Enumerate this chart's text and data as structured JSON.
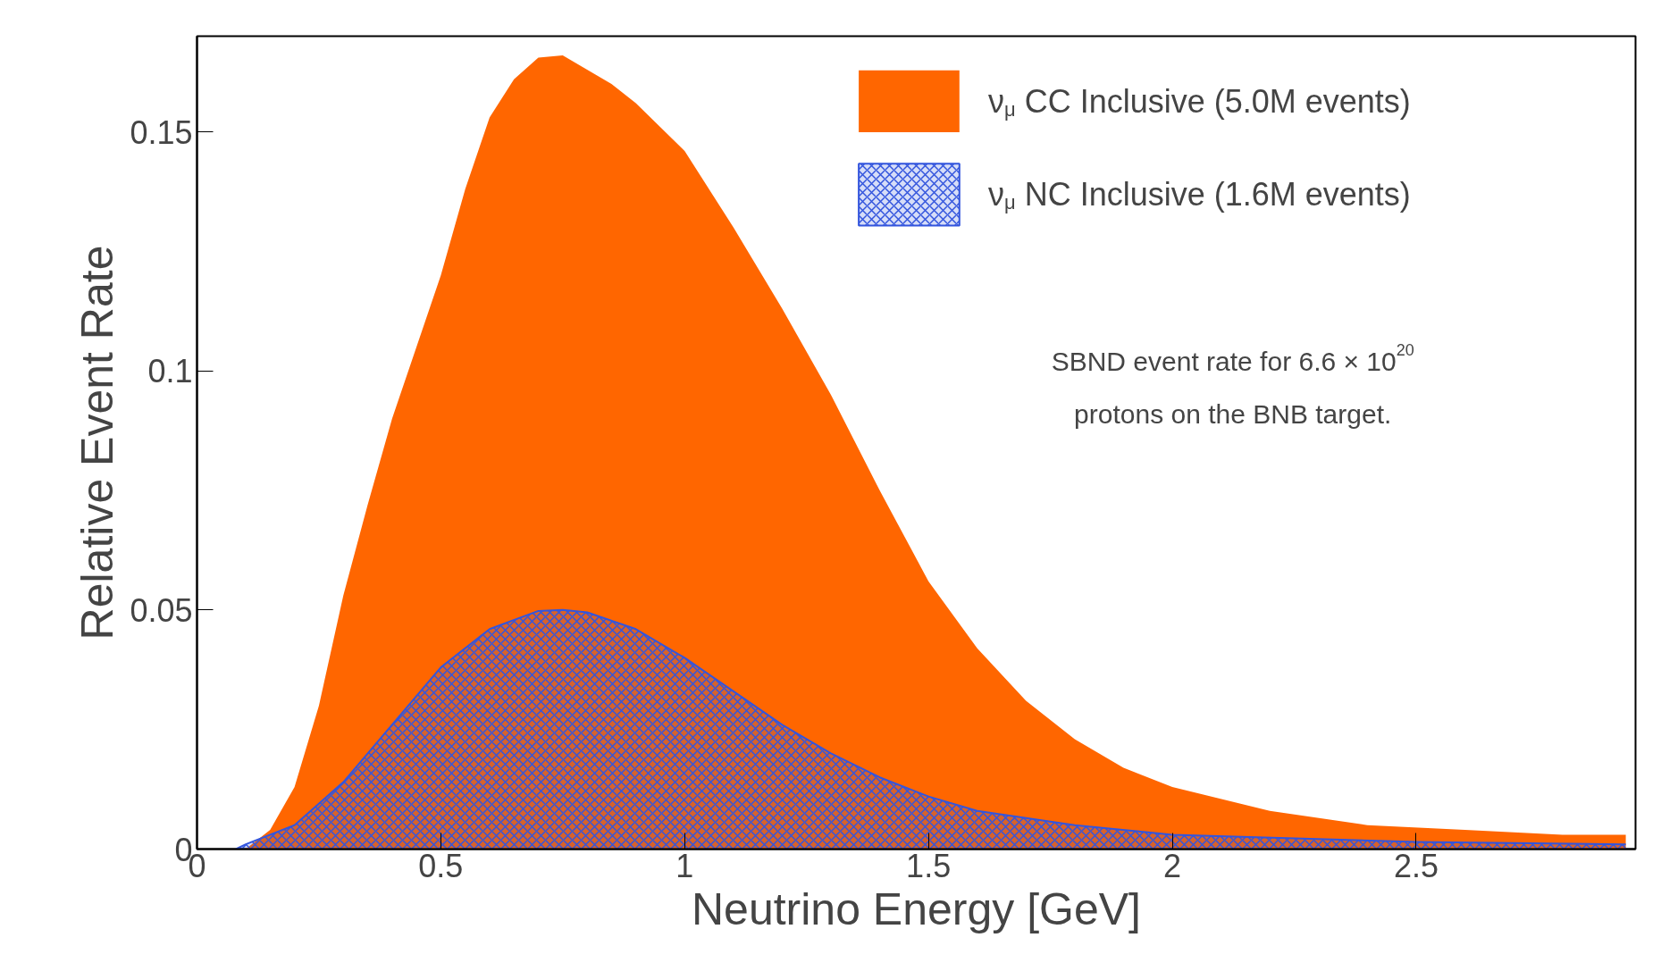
{
  "chart_data": {
    "type": "area",
    "xlabel": "Neutrino Energy [GeV]",
    "ylabel": "Relative Event Rate",
    "xlim": [
      0,
      2.95
    ],
    "ylim": [
      0,
      0.17
    ],
    "xticks": [
      0,
      0.5,
      1,
      1.5,
      2,
      2.5
    ],
    "yticks": [
      0,
      0.05,
      0.1,
      0.15
    ],
    "grid": false,
    "legend": "top right",
    "annotations": [
      "SBND event rate for 6.6 × 10$^{20}$",
      "protons on the BNB target."
    ],
    "series": [
      {
        "name": "ν$_{μ}$ CC Inclusive  (5.0M events)",
        "color": "#ff6600",
        "x": [
          0.1,
          0.15,
          0.2,
          0.25,
          0.3,
          0.35,
          0.4,
          0.45,
          0.5,
          0.55,
          0.6,
          0.65,
          0.7,
          0.75,
          0.8,
          0.85,
          0.9,
          0.95,
          1.0,
          1.1,
          1.2,
          1.3,
          1.4,
          1.5,
          1.6,
          1.7,
          1.8,
          1.9,
          2.0,
          2.2,
          2.4,
          2.6,
          2.8,
          2.93
        ],
        "values": [
          0,
          0.004,
          0.013,
          0.03,
          0.053,
          0.072,
          0.09,
          0.105,
          0.12,
          0.138,
          0.153,
          0.161,
          0.1655,
          0.166,
          0.163,
          0.16,
          0.156,
          0.151,
          0.146,
          0.13,
          0.113,
          0.095,
          0.075,
          0.056,
          0.042,
          0.031,
          0.023,
          0.017,
          0.013,
          0.008,
          0.005,
          0.004,
          0.003,
          0.003
        ]
      },
      {
        "name": "ν$_{μ}$ NC Inclusive  (1.6M events)",
        "color": "#3355dd",
        "x": [
          0.08,
          0.1,
          0.2,
          0.3,
          0.4,
          0.5,
          0.6,
          0.7,
          0.75,
          0.8,
          0.9,
          1.0,
          1.1,
          1.2,
          1.3,
          1.4,
          1.5,
          1.6,
          1.8,
          2.0,
          2.5,
          2.93
        ],
        "values": [
          0,
          0.001,
          0.005,
          0.014,
          0.026,
          0.038,
          0.046,
          0.0498,
          0.05,
          0.0495,
          0.046,
          0.04,
          0.033,
          0.026,
          0.02,
          0.015,
          0.011,
          0.008,
          0.005,
          0.003,
          0.0015,
          0.001
        ]
      }
    ]
  }
}
